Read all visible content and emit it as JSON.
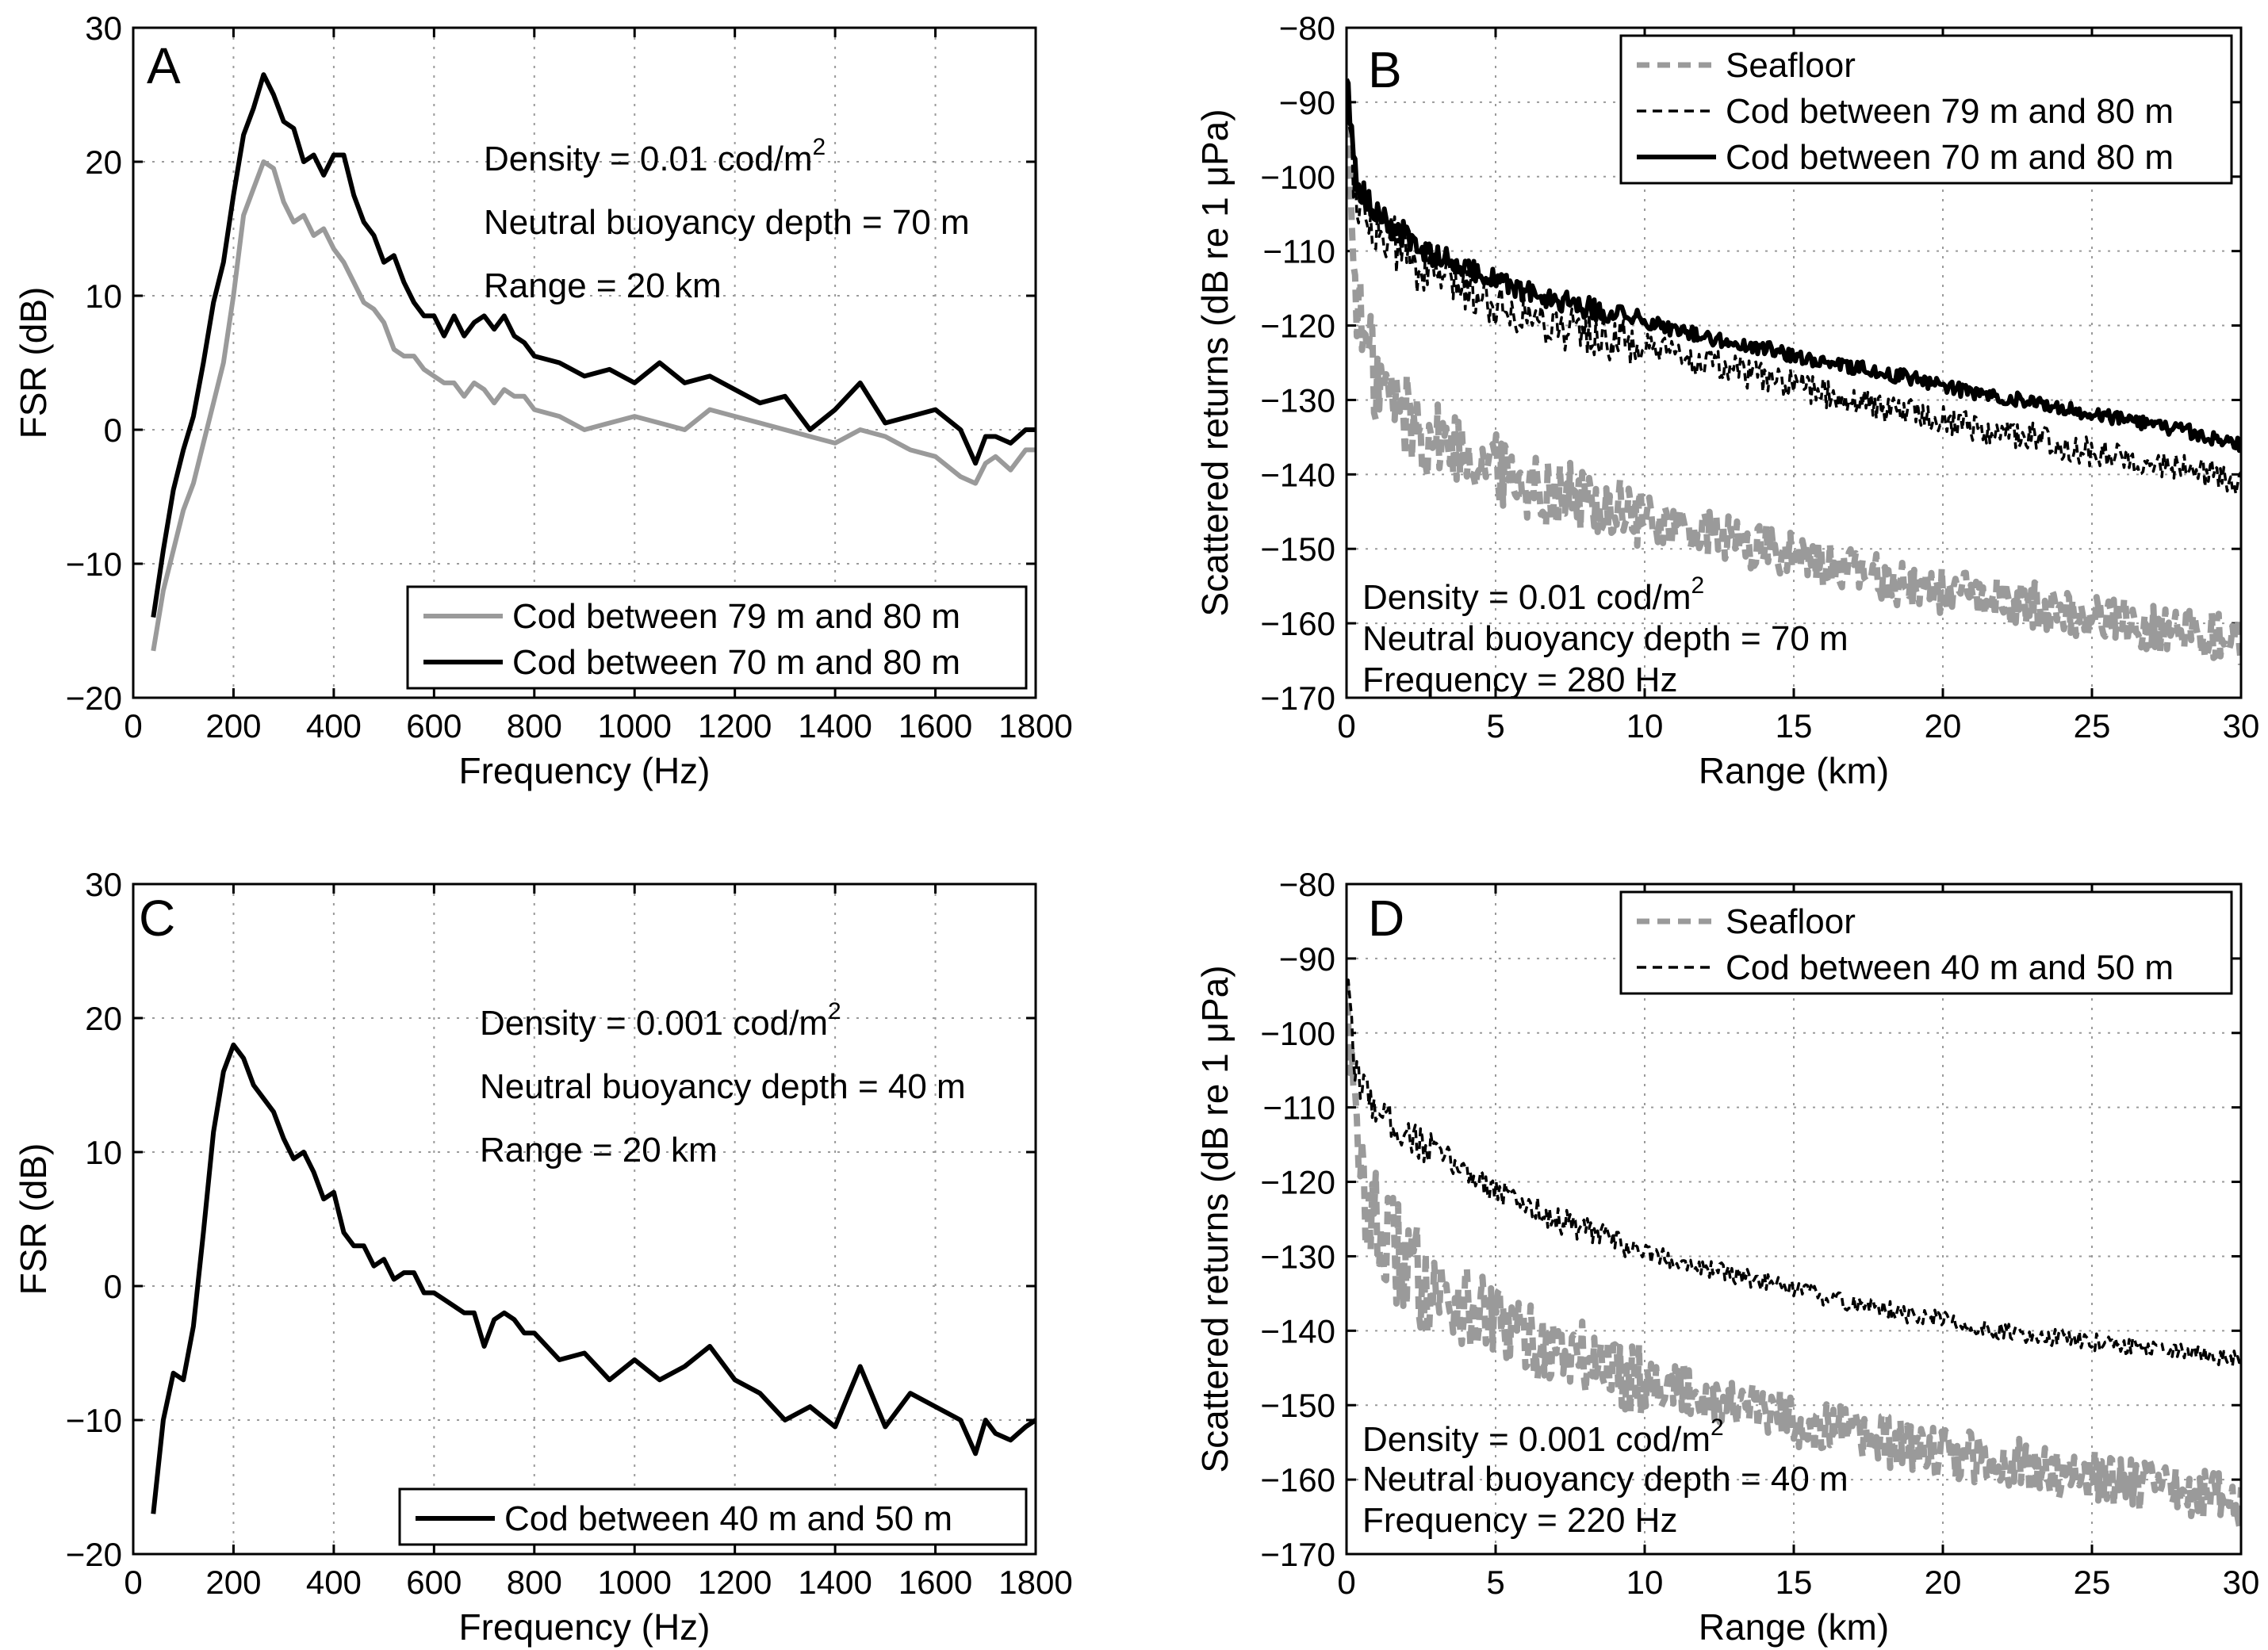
{
  "chart_data": [
    {
      "panel": "A",
      "type": "line",
      "title": "",
      "xlabel": "Frequency (Hz)",
      "ylabel": "FSR (dB)",
      "xlim": [
        0,
        1800
      ],
      "ylim": [
        -20,
        30
      ],
      "xticks": [
        "0",
        "200",
        "400",
        "600",
        "800",
        "1000",
        "1200",
        "1400",
        "1600",
        "1800"
      ],
      "yticks": [
        "−20",
        "−10",
        "0",
        "10",
        "20",
        "30"
      ],
      "grid": true,
      "legend_position": "bottom-right",
      "annotations": [
        "Density = 0.01 cod/m",
        "Neutral buoyancy depth = 70 m",
        "Range = 20 km"
      ],
      "annotation_superscript": "2",
      "series": [
        {
          "name": "Cod between 79 m and 80 m",
          "color": "#9a9a9a",
          "style": "solid",
          "x": [
            40,
            60,
            80,
            100,
            120,
            140,
            160,
            180,
            200,
            220,
            240,
            260,
            280,
            300,
            320,
            340,
            360,
            380,
            400,
            420,
            440,
            460,
            480,
            500,
            520,
            540,
            560,
            580,
            600,
            620,
            640,
            660,
            680,
            700,
            720,
            740,
            760,
            780,
            800,
            850,
            900,
            950,
            1000,
            1050,
            1100,
            1150,
            1200,
            1250,
            1300,
            1350,
            1400,
            1450,
            1500,
            1550,
            1600,
            1650,
            1680,
            1700,
            1720,
            1750,
            1780,
            1800
          ],
          "y": [
            -16.5,
            -12,
            -9,
            -6,
            -4,
            -1,
            2,
            5,
            10,
            16,
            18,
            20,
            19.5,
            17,
            15.5,
            16,
            14.5,
            15,
            13.5,
            12.5,
            11,
            9.5,
            9,
            8,
            6,
            5.5,
            5.5,
            4.5,
            4,
            3.5,
            3.5,
            2.5,
            3.5,
            3,
            2,
            3,
            2.5,
            2.5,
            1.5,
            1,
            0,
            0.5,
            1,
            0.5,
            0,
            1.5,
            1,
            0.5,
            0,
            -0.5,
            -1,
            0,
            -0.5,
            -1.5,
            -2,
            -3.5,
            -4,
            -2.5,
            -2,
            -3,
            -1.5,
            -1.5
          ]
        },
        {
          "name": "Cod between 70 m and 80 m",
          "color": "#000000",
          "style": "solid",
          "x": [
            40,
            60,
            80,
            100,
            120,
            140,
            160,
            180,
            200,
            220,
            240,
            260,
            280,
            300,
            320,
            340,
            360,
            380,
            400,
            420,
            440,
            460,
            480,
            500,
            520,
            540,
            560,
            580,
            600,
            620,
            640,
            660,
            680,
            700,
            720,
            740,
            760,
            780,
            800,
            850,
            900,
            950,
            1000,
            1050,
            1100,
            1150,
            1200,
            1250,
            1300,
            1350,
            1400,
            1450,
            1500,
            1550,
            1600,
            1650,
            1680,
            1700,
            1720,
            1750,
            1780,
            1800
          ],
          "y": [
            -14,
            -9,
            -4.5,
            -1.5,
            1,
            5,
            9.5,
            12.5,
            17.5,
            22,
            24,
            26.5,
            25,
            23,
            22.5,
            20,
            20.5,
            19,
            20.5,
            20.5,
            17.5,
            15.5,
            14.5,
            12.5,
            13,
            11,
            9.5,
            8.5,
            8.5,
            7,
            8.5,
            7,
            8,
            8.5,
            7.5,
            8.5,
            7,
            6.5,
            5.5,
            5,
            4,
            4.5,
            3.5,
            5,
            3.5,
            4,
            3,
            2,
            2.5,
            0,
            1.5,
            3.5,
            0.5,
            1,
            1.5,
            0,
            -2.5,
            -0.5,
            -0.5,
            -1,
            0,
            0
          ]
        }
      ]
    },
    {
      "panel": "B",
      "type": "line",
      "title": "",
      "xlabel": "Range (km)",
      "ylabel": "Scattered returns (dB re 1 μPa)",
      "xlim": [
        0,
        30
      ],
      "ylim": [
        -170,
        -80
      ],
      "xticks": [
        "0",
        "5",
        "10",
        "15",
        "20",
        "25",
        "30"
      ],
      "yticks": [
        "−170",
        "−160",
        "−150",
        "−140",
        "−130",
        "−120",
        "−110",
        "−100",
        "−90",
        "−80"
      ],
      "grid": true,
      "legend_position": "top-right",
      "annotations": [
        "Density = 0.01 cod/m",
        "Neutral buoyancy depth = 70 m",
        "Frequency = 280 Hz"
      ],
      "annotation_superscript": "2",
      "series": [
        {
          "name": "Seafloor",
          "color": "#9a9a9a",
          "style": "thick-dashed",
          "x": [
            0,
            0.25,
            0.5,
            1,
            1.5,
            2,
            2.5,
            3,
            4,
            5,
            6,
            7,
            8,
            9,
            10,
            11,
            12,
            13,
            14,
            15,
            16,
            17,
            18,
            19,
            20,
            21,
            22,
            23,
            24,
            25,
            26,
            27,
            28,
            29,
            30
          ],
          "y": [
            -90,
            -112,
            -121,
            -127,
            -130,
            -132,
            -134,
            -135,
            -137,
            -139,
            -141,
            -142.5,
            -143.5,
            -145,
            -146,
            -147,
            -148,
            -149,
            -150,
            -151,
            -152,
            -153,
            -154,
            -155,
            -155.5,
            -156.5,
            -157,
            -157.5,
            -158.5,
            -159,
            -159.5,
            -160.5,
            -161,
            -161.5,
            -162.5
          ],
          "jitter": 4
        },
        {
          "name": "Cod between 79 m and 80 m",
          "color": "#000000",
          "style": "thin-dashed",
          "x": [
            0,
            0.25,
            0.5,
            1,
            1.5,
            2,
            2.5,
            3,
            4,
            5,
            6,
            7,
            8,
            9,
            10,
            11,
            12,
            13,
            14,
            15,
            16,
            17,
            18,
            19,
            20,
            21,
            22,
            23,
            24,
            25,
            26,
            27,
            28,
            29,
            30
          ],
          "y": [
            -88,
            -100,
            -104,
            -107,
            -109,
            -110.5,
            -112,
            -113,
            -115,
            -117,
            -118.5,
            -120,
            -121,
            -122,
            -123,
            -124,
            -125,
            -126,
            -127,
            -128,
            -129,
            -130,
            -131,
            -131.5,
            -132.5,
            -133.5,
            -134.5,
            -135,
            -136,
            -137,
            -137.5,
            -138.5,
            -139,
            -140,
            -141
          ],
          "jitter": 2.5
        },
        {
          "name": "Cod between 70 m and 80 m",
          "color": "#000000",
          "style": "thick-solid",
          "x": [
            0,
            0.25,
            0.5,
            1,
            1.5,
            2,
            2.5,
            3,
            4,
            5,
            6,
            7,
            8,
            9,
            10,
            11,
            12,
            13,
            14,
            15,
            16,
            17,
            18,
            19,
            20,
            21,
            22,
            23,
            24,
            25,
            26,
            27,
            28,
            29,
            30
          ],
          "y": [
            -86,
            -99,
            -102,
            -105,
            -107,
            -108,
            -109.5,
            -110.5,
            -112,
            -114,
            -115.5,
            -116.5,
            -117.5,
            -118.5,
            -119.5,
            -120.5,
            -121.5,
            -122.5,
            -123,
            -124,
            -125,
            -125.5,
            -126.5,
            -127,
            -128,
            -129,
            -129.5,
            -130.5,
            -131,
            -132,
            -132.5,
            -133.5,
            -134,
            -135,
            -136
          ],
          "jitter": 1.2
        }
      ]
    },
    {
      "panel": "C",
      "type": "line",
      "title": "",
      "xlabel": "Frequency (Hz)",
      "ylabel": "FSR (dB)",
      "xlim": [
        0,
        1800
      ],
      "ylim": [
        -20,
        30
      ],
      "xticks": [
        "0",
        "200",
        "400",
        "600",
        "800",
        "1000",
        "1200",
        "1400",
        "1600",
        "1800"
      ],
      "yticks": [
        "−20",
        "−10",
        "0",
        "10",
        "20",
        "30"
      ],
      "grid": true,
      "legend_position": "bottom-right",
      "annotations": [
        "Density = 0.001 cod/m",
        "Neutral buoyancy depth = 40 m",
        "Range = 20 km"
      ],
      "annotation_superscript": "2",
      "series": [
        {
          "name": "Cod between 40 m and 50 m",
          "color": "#000000",
          "style": "solid",
          "x": [
            40,
            60,
            80,
            100,
            120,
            140,
            160,
            180,
            200,
            220,
            240,
            260,
            280,
            300,
            320,
            340,
            360,
            380,
            400,
            420,
            440,
            460,
            480,
            500,
            520,
            540,
            560,
            580,
            600,
            620,
            640,
            660,
            680,
            700,
            720,
            740,
            760,
            780,
            800,
            850,
            900,
            950,
            1000,
            1050,
            1100,
            1150,
            1200,
            1250,
            1300,
            1350,
            1400,
            1450,
            1500,
            1550,
            1600,
            1650,
            1680,
            1700,
            1720,
            1750,
            1780,
            1800
          ],
          "y": [
            -17,
            -10,
            -6.5,
            -7,
            -3,
            4,
            11.5,
            16,
            18,
            17,
            15,
            14,
            13,
            11,
            9.5,
            10,
            8.5,
            6.5,
            7,
            4,
            3,
            3,
            1.5,
            2,
            0.5,
            1,
            1,
            -0.5,
            -0.5,
            -1,
            -1.5,
            -2,
            -2,
            -4.5,
            -2.5,
            -2,
            -2.5,
            -3.5,
            -3.5,
            -5.5,
            -5,
            -7,
            -5.5,
            -7,
            -6,
            -4.5,
            -7,
            -8,
            -10,
            -9,
            -10.5,
            -6,
            -10.5,
            -8,
            -9,
            -10,
            -12.5,
            -10,
            -11,
            -11.5,
            -10.5,
            -10
          ]
        }
      ]
    },
    {
      "panel": "D",
      "type": "line",
      "title": "",
      "xlabel": "Range (km)",
      "ylabel": "Scattered returns (dB re 1 μPa)",
      "xlim": [
        0,
        30
      ],
      "ylim": [
        -170,
        -80
      ],
      "xticks": [
        "0",
        "5",
        "10",
        "15",
        "20",
        "25",
        "30"
      ],
      "yticks": [
        "−170",
        "−160",
        "−150",
        "−140",
        "−130",
        "−120",
        "−110",
        "−100",
        "−90",
        "−80"
      ],
      "grid": true,
      "legend_position": "top-right",
      "annotations": [
        "Density = 0.001 cod/m",
        "Neutral buoyancy depth = 40 m",
        "Frequency = 220 Hz"
      ],
      "annotation_superscript": "2",
      "series": [
        {
          "name": "Seafloor",
          "color": "#9a9a9a",
          "style": "thick-dashed",
          "x": [
            0,
            0.25,
            0.5,
            1,
            1.5,
            2,
            2.5,
            3,
            4,
            5,
            6,
            7,
            8,
            9,
            10,
            11,
            12,
            13,
            14,
            15,
            16,
            17,
            18,
            19,
            20,
            21,
            22,
            23,
            24,
            25,
            26,
            27,
            28,
            29,
            30
          ],
          "y": [
            -90,
            -112,
            -120,
            -126,
            -129,
            -131,
            -133,
            -134.5,
            -137,
            -139,
            -141,
            -142.5,
            -144,
            -145,
            -146.5,
            -147.5,
            -148.5,
            -150,
            -151,
            -152,
            -153,
            -154,
            -155,
            -155.5,
            -156.5,
            -157,
            -157.5,
            -158.5,
            -159,
            -159.5,
            -160,
            -161,
            -161.5,
            -162,
            -163
          ],
          "jitter": 4.5
        },
        {
          "name": "Cod between 40 m and 50 m",
          "color": "#000000",
          "style": "thin-dashed",
          "x": [
            0,
            0.25,
            0.5,
            1,
            1.5,
            2,
            2.5,
            3,
            4,
            5,
            6,
            7,
            8,
            9,
            10,
            11,
            12,
            13,
            14,
            15,
            16,
            17,
            18,
            19,
            20,
            21,
            22,
            23,
            24,
            25,
            26,
            27,
            28,
            29,
            30
          ],
          "y": [
            -92,
            -104,
            -107,
            -110,
            -112,
            -113.5,
            -115,
            -116,
            -118.5,
            -121,
            -123,
            -125,
            -126.5,
            -128,
            -129.5,
            -130.5,
            -131.5,
            -132.5,
            -133.5,
            -134.5,
            -135.5,
            -136.5,
            -137,
            -138,
            -138.5,
            -139.5,
            -140,
            -140.5,
            -141,
            -141.5,
            -142,
            -142.5,
            -143,
            -143.5,
            -144
          ],
          "jitter": 1.5
        }
      ]
    }
  ]
}
